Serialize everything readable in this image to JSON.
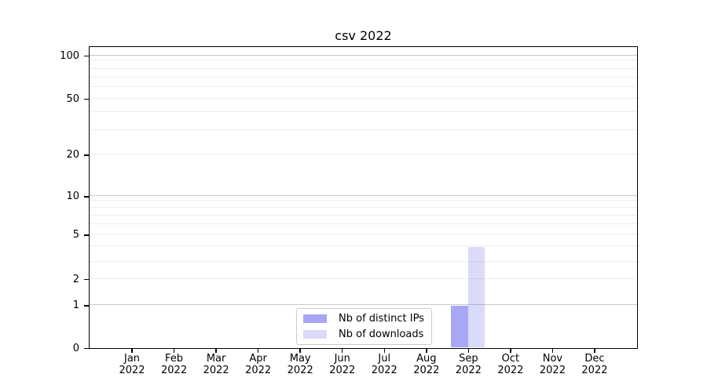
{
  "page": {
    "background": "#ffffff"
  },
  "chart_data": {
    "type": "bar",
    "title": "csv 2022",
    "xlabel": "",
    "ylabel": "",
    "categories": [
      "Jan",
      "Feb",
      "Mar",
      "Apr",
      "May",
      "Jun",
      "Jul",
      "Aug",
      "Sep",
      "Oct",
      "Nov",
      "Dec"
    ],
    "category_year": "2022",
    "series": [
      {
        "name": "Nb of distinct IPs",
        "color": "rgba(120,120,235,0.65)",
        "values": [
          0,
          0,
          0,
          0,
          0,
          0,
          0,
          0,
          1,
          0,
          0,
          0
        ]
      },
      {
        "name": "Nb of downloads",
        "color": "rgba(120,120,235,0.27)",
        "values": [
          0,
          0,
          0,
          0,
          0,
          0,
          0,
          0,
          4,
          0,
          0,
          0
        ]
      }
    ],
    "legend": {
      "position": "lower center",
      "entries": [
        "Nb of distinct IPs",
        "Nb of downloads"
      ]
    },
    "grid": "horizontal-only",
    "y_axis": {
      "scale": "symlog",
      "ylim": [
        0,
        115
      ],
      "ticks": [
        100,
        50,
        20,
        10,
        5,
        2,
        1,
        0
      ],
      "gridline_values": [
        1,
        2,
        3,
        4,
        5,
        6,
        7,
        8,
        9,
        10,
        20,
        30,
        40,
        50,
        60,
        70,
        80,
        90,
        100
      ],
      "major_gridlines": [
        1,
        10,
        100
      ],
      "anchors": [
        [
          0,
          384
        ],
        [
          1,
          329.5
        ],
        [
          2,
          296
        ],
        [
          3,
          274
        ],
        [
          4,
          254.5
        ],
        [
          5,
          239.5
        ],
        [
          6,
          226.5
        ],
        [
          7,
          215.5
        ],
        [
          8,
          205.5
        ],
        [
          9,
          196.5
        ],
        [
          10,
          190.5
        ],
        [
          20,
          137.5
        ],
        [
          30,
          106
        ],
        [
          40,
          83.5
        ],
        [
          50,
          66
        ],
        [
          60,
          51.5
        ],
        [
          70,
          39.5
        ],
        [
          80,
          28
        ],
        [
          90,
          17.5
        ],
        [
          100,
          11
        ]
      ]
    },
    "colors": {
      "grid_major": "#c8c8c8",
      "grid_minor": "#ececec",
      "spine": "#000000",
      "text": "#000000"
    }
  }
}
